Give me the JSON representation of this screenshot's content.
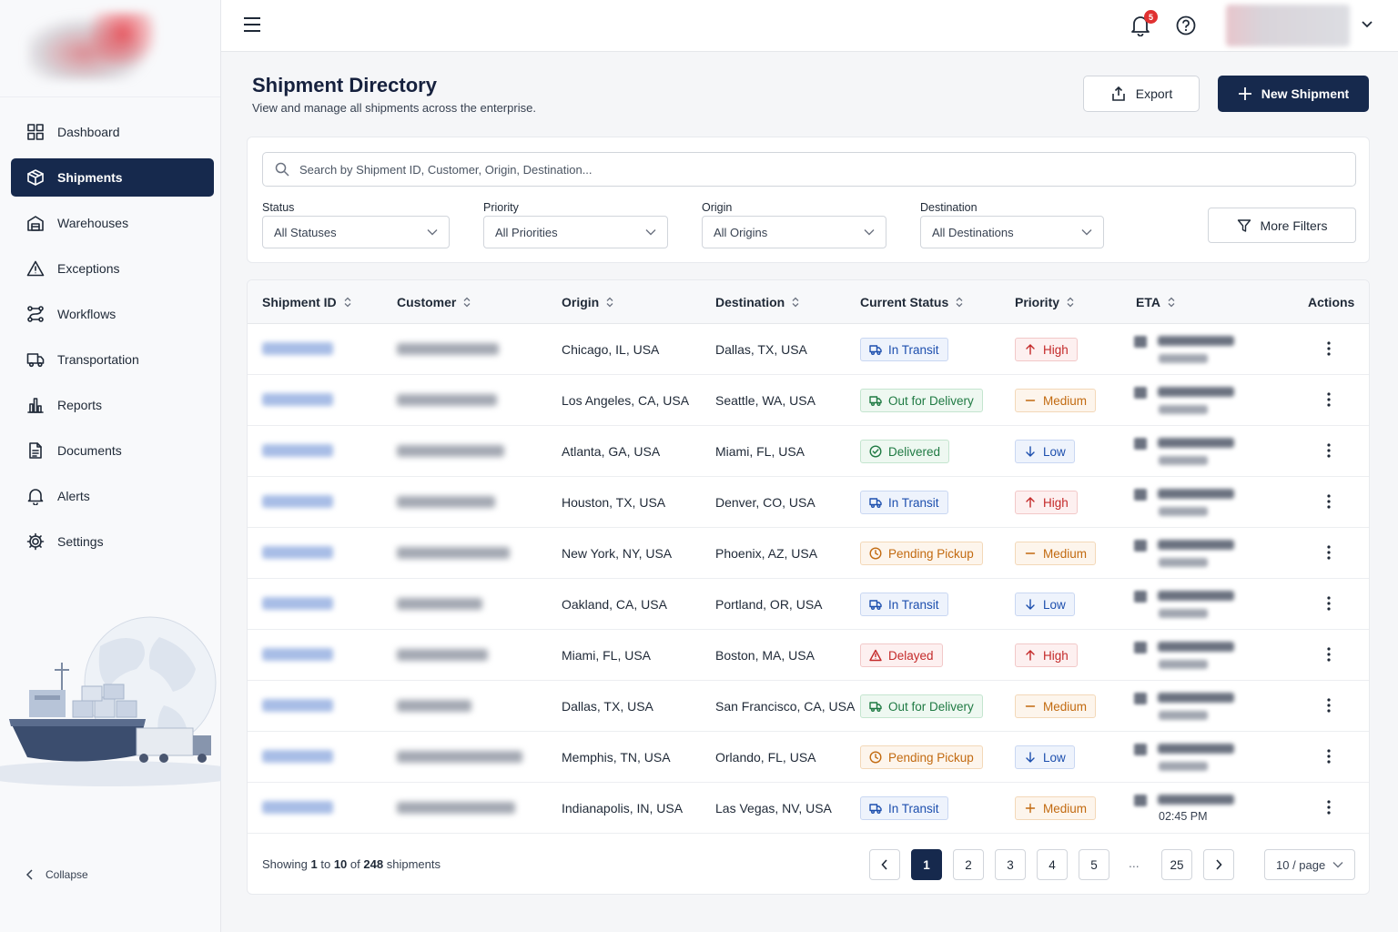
{
  "sidebar": {
    "items": [
      {
        "label": "Dashboard",
        "icon": "grid-icon",
        "active": false
      },
      {
        "label": "Shipments",
        "icon": "package-icon",
        "active": true
      },
      {
        "label": "Warehouses",
        "icon": "warehouse-icon",
        "active": false
      },
      {
        "label": "Exceptions",
        "icon": "warning-icon",
        "active": false
      },
      {
        "label": "Workflows",
        "icon": "workflow-icon",
        "active": false
      },
      {
        "label": "Transportation",
        "icon": "truck-icon",
        "active": false
      },
      {
        "label": "Reports",
        "icon": "bar-chart-icon",
        "active": false
      },
      {
        "label": "Documents",
        "icon": "document-icon",
        "active": false
      },
      {
        "label": "Alerts",
        "icon": "bell-icon",
        "active": false
      },
      {
        "label": "Settings",
        "icon": "gear-icon",
        "active": false
      }
    ],
    "collapse_label": "Collapse"
  },
  "topbar": {
    "notification_count": "5"
  },
  "header": {
    "title": "Shipment Directory",
    "subtitle": "View and manage all shipments across the enterprise.",
    "export_label": "Export",
    "new_label": "New Shipment"
  },
  "filters": {
    "search_placeholder": "Search by Shipment ID, Customer, Origin, Destination...",
    "status": {
      "label": "Status",
      "value": "All Statuses"
    },
    "priority": {
      "label": "Priority",
      "value": "All Priorities"
    },
    "origin": {
      "label": "Origin",
      "value": "All Origins"
    },
    "destination": {
      "label": "Destination",
      "value": "All Destinations"
    },
    "more_label": "More Filters"
  },
  "table": {
    "columns": [
      "Shipment ID",
      "Customer",
      "Origin",
      "Destination",
      "Current Status",
      "Priority",
      "ETA",
      "Actions"
    ],
    "rows": [
      {
        "origin": "Chicago, IL, USA",
        "destination": "Dallas, TX, USA",
        "status": "In Transit",
        "priority": "High"
      },
      {
        "origin": "Los Angeles, CA, USA",
        "destination": "Seattle, WA, USA",
        "status": "Out for Delivery",
        "priority": "Medium"
      },
      {
        "origin": "Atlanta, GA, USA",
        "destination": "Miami, FL, USA",
        "status": "Delivered",
        "priority": "Low"
      },
      {
        "origin": "Houston, TX, USA",
        "destination": "Denver, CO, USA",
        "status": "In Transit",
        "priority": "High"
      },
      {
        "origin": "New York, NY, USA",
        "destination": "Phoenix, AZ, USA",
        "status": "Pending Pickup",
        "priority": "Medium"
      },
      {
        "origin": "Oakland, CA, USA",
        "destination": "Portland, OR, USA",
        "status": "In Transit",
        "priority": "Low"
      },
      {
        "origin": "Miami, FL, USA",
        "destination": "Boston, MA, USA",
        "status": "Delayed",
        "priority": "High"
      },
      {
        "origin": "Dallas, TX, USA",
        "destination": "San Francisco, CA, USA",
        "status": "Out for Delivery",
        "priority": "Medium"
      },
      {
        "origin": "Memphis, TN, USA",
        "destination": "Orlando, FL, USA",
        "status": "Pending Pickup",
        "priority": "Low"
      },
      {
        "origin": "Indianapolis, IN, USA",
        "destination": "Las Vegas, NV, USA",
        "status": "In Transit",
        "priority": "Medium",
        "eta_time": "02:45 PM"
      }
    ]
  },
  "pagination": {
    "showing_prefix": "Showing",
    "from": "1",
    "to_word": "to",
    "to": "10",
    "of_word": "of",
    "total": "248",
    "suffix": "shipments",
    "pages": [
      "1",
      "2",
      "3",
      "4",
      "5"
    ],
    "ellipsis": "...",
    "last_page": "25",
    "current": "1",
    "per_page": "10 / page"
  },
  "colors": {
    "primary": "#16294d",
    "in_transit": "#1d4fae",
    "delivered": "#1f7a43",
    "pending": "#c26a10",
    "delayed": "#c42a2a"
  }
}
